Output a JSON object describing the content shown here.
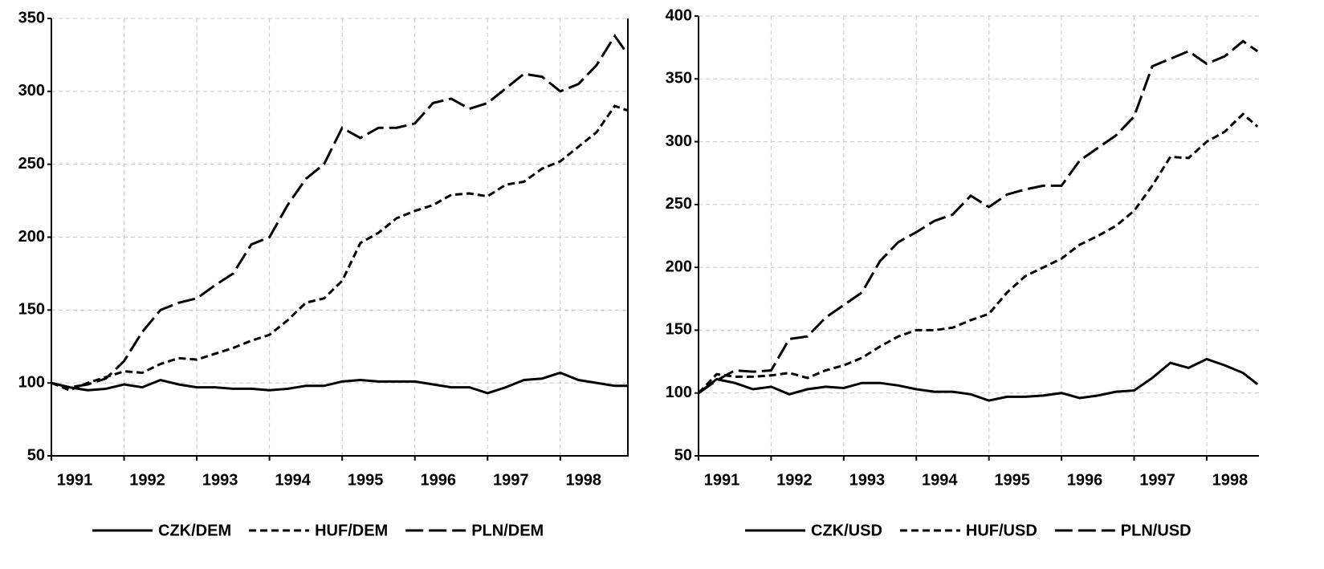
{
  "chart_data": [
    {
      "type": "line",
      "x": [
        1991,
        1991.25,
        1991.5,
        1991.75,
        1992,
        1992.25,
        1992.5,
        1992.75,
        1993,
        1993.25,
        1993.5,
        1993.75,
        1994,
        1994.25,
        1994.5,
        1994.75,
        1995,
        1995.25,
        1995.5,
        1995.75,
        1996,
        1996.25,
        1996.5,
        1996.75,
        1997,
        1997.25,
        1997.5,
        1997.75,
        1998,
        1998.25,
        1998.5,
        1998.75,
        1998.92
      ],
      "series": [
        {
          "name": "CZK/DEM",
          "color": "#000000",
          "style": "solid",
          "values": [
            100,
            97,
            95,
            96,
            99,
            97,
            102,
            99,
            97,
            97,
            96,
            96,
            95,
            96,
            98,
            98,
            101,
            102,
            101,
            101,
            101,
            99,
            97,
            97,
            93,
            97,
            102,
            103,
            107,
            102,
            100,
            98,
            98
          ]
        },
        {
          "name": "HUF/DEM",
          "color": "#000000",
          "style": "dashed",
          "values": [
            100,
            95,
            100,
            104,
            108,
            107,
            113,
            117,
            116,
            120,
            124,
            129,
            133,
            143,
            155,
            158,
            170,
            196,
            203,
            213,
            218,
            222,
            229,
            230,
            228,
            236,
            238,
            247,
            252,
            262,
            272,
            290,
            287
          ]
        },
        {
          "name": "PLN/DEM",
          "color": "#000000",
          "style": "longdash",
          "values": [
            100,
            97,
            99,
            103,
            115,
            135,
            150,
            155,
            158,
            167,
            175,
            195,
            200,
            222,
            240,
            250,
            275,
            268,
            275,
            275,
            278,
            292,
            295,
            288,
            292,
            302,
            312,
            310,
            300,
            305,
            318,
            338,
            326
          ]
        }
      ],
      "xlim": [
        1991,
        1998.93
      ],
      "xticks": [
        1991,
        1992,
        1993,
        1994,
        1995,
        1996,
        1997,
        1998
      ],
      "ylim": [
        50,
        350
      ],
      "yticks": [
        50,
        100,
        150,
        200,
        250,
        300,
        350
      ],
      "grid": true
    },
    {
      "type": "line",
      "x": [
        1991,
        1991.25,
        1991.5,
        1991.75,
        1992,
        1992.25,
        1992.5,
        1992.75,
        1993,
        1993.25,
        1993.5,
        1993.75,
        1994,
        1994.25,
        1994.5,
        1994.75,
        1995,
        1995.25,
        1995.5,
        1995.75,
        1996,
        1996.25,
        1996.5,
        1996.75,
        1997,
        1997.25,
        1997.5,
        1997.75,
        1998,
        1998.25,
        1998.5,
        1998.7
      ],
      "series": [
        {
          "name": "CZK/USD",
          "color": "#000000",
          "style": "solid",
          "values": [
            100,
            111,
            108,
            103,
            105,
            99,
            103,
            105,
            104,
            108,
            108,
            106,
            103,
            101,
            101,
            99,
            94,
            97,
            97,
            98,
            100,
            96,
            98,
            101,
            102,
            112,
            124,
            120,
            127,
            122,
            116,
            107
          ]
        },
        {
          "name": "HUF/USD",
          "color": "#000000",
          "style": "dashed",
          "values": [
            100,
            115,
            113,
            113,
            114,
            116,
            112,
            118,
            122,
            128,
            137,
            145,
            150,
            150,
            152,
            158,
            163,
            180,
            193,
            200,
            207,
            218,
            225,
            233,
            245,
            265,
            288,
            287,
            300,
            308,
            322,
            312
          ]
        },
        {
          "name": "PLN/USD",
          "color": "#000000",
          "style": "longdash",
          "values": [
            100,
            110,
            118,
            117,
            118,
            143,
            145,
            160,
            170,
            180,
            205,
            220,
            228,
            237,
            242,
            257,
            248,
            258,
            262,
            265,
            265,
            285,
            295,
            305,
            320,
            360,
            366,
            372,
            362,
            368,
            380,
            372
          ]
        }
      ],
      "xlim": [
        1991,
        1998.72
      ],
      "xticks": [
        1991,
        1992,
        1993,
        1994,
        1995,
        1996,
        1997,
        1998
      ],
      "ylim": [
        50,
        400
      ],
      "yticks": [
        50,
        100,
        150,
        200,
        250,
        300,
        350,
        400
      ],
      "grid": true
    }
  ]
}
